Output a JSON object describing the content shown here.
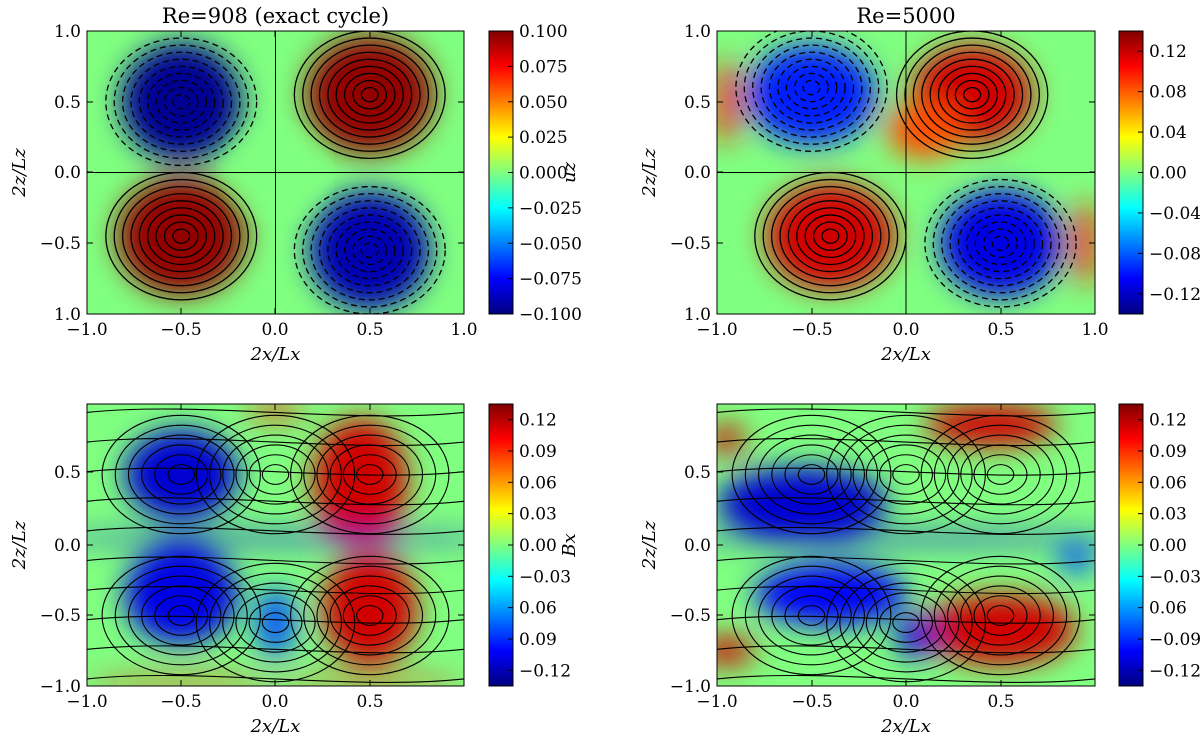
{
  "colormap_colors": [
    "#00007f",
    "#0000ff",
    "#0080ff",
    "#00ffff",
    "#80ff80",
    "#ffff00",
    "#ff8000",
    "#ff0000",
    "#7f0000"
  ],
  "chart_data": [
    {
      "type": "heatmap",
      "panel": "top-left",
      "title": "Re=908 (exact cycle)",
      "xlabel": "2x/Lx",
      "ylabel": "2z/Lz",
      "xlim": [
        -1.0,
        1.0
      ],
      "ylim": [
        -1.0,
        1.0
      ],
      "x_ticks": [
        "−1.0",
        "−0.5",
        "0.0",
        "0.5",
        "1.0"
      ],
      "y_ticks": [
        "1.0",
        "0.5",
        "0.0",
        "−0.5",
        "1.0"
      ],
      "colorbar_label": "uz",
      "colorbar_range": [
        -0.1,
        0.1
      ],
      "colorbar_ticks": [
        "0.100",
        "0.075",
        "0.050",
        "0.025",
        "0.000",
        "−0.025",
        "−0.050",
        "−0.075",
        "−0.100"
      ],
      "overlay": "contours (dashed for negative)",
      "extrema": [
        {
          "x": -0.5,
          "z": 0.5,
          "value": -0.1
        },
        {
          "x": 0.5,
          "z": 0.55,
          "value": 0.1
        },
        {
          "x": -0.5,
          "z": -0.45,
          "value": 0.1
        },
        {
          "x": 0.5,
          "z": -0.55,
          "value": -0.1
        }
      ]
    },
    {
      "type": "heatmap",
      "panel": "top-right",
      "title": "Re=5000",
      "xlabel": "2x/Lx",
      "ylabel": "2z/Lz",
      "xlim": [
        -1.0,
        1.0
      ],
      "ylim": [
        -1.0,
        1.0
      ],
      "x_ticks": [
        "−1.0",
        "−0.5",
        "0.0",
        "0.5",
        "1.0"
      ],
      "y_ticks": [
        "1.0",
        "0.5",
        "0.0",
        "−0.5",
        "1.0"
      ],
      "colorbar_range": [
        -0.15,
        0.15
      ],
      "colorbar_ticks": [
        "0.12",
        "0.08",
        "0.04",
        "0.00",
        "−0.04",
        "−0.08",
        "−0.12"
      ],
      "overlay": "contours (dashed for negative)",
      "extrema": [
        {
          "x": -0.5,
          "z": 0.6,
          "value": -0.12
        },
        {
          "x": 0.35,
          "z": 0.55,
          "value": 0.14
        },
        {
          "x": -0.4,
          "z": -0.45,
          "value": 0.14
        },
        {
          "x": 0.5,
          "z": -0.5,
          "value": -0.12
        }
      ]
    },
    {
      "type": "heatmap",
      "panel": "bottom-left",
      "xlabel": "2x/Lx",
      "ylabel": "2z/Lz",
      "xlim": [
        -1.0,
        1.0
      ],
      "ylim": [
        -1.0,
        1.0
      ],
      "x_ticks": [
        "−1.0",
        "−0.5",
        "0.0",
        "0.5"
      ],
      "y_ticks": [
        "0.5",
        "0.0",
        "−0.5",
        "−1.0"
      ],
      "colorbar_label": "Bx",
      "colorbar_range": [
        -0.15,
        0.15
      ],
      "colorbar_ticks": [
        "0.12",
        "0.09",
        "0.06",
        "0.03",
        "0.00",
        "−0.03",
        "0.06",
        "0.09",
        "−0.12"
      ],
      "overlay": "streamlines"
    },
    {
      "type": "heatmap",
      "panel": "bottom-right",
      "xlabel": "2x/Lx",
      "ylabel": "2z/Lz",
      "xlim": [
        -1.0,
        1.0
      ],
      "ylim": [
        -1.0,
        1.0
      ],
      "x_ticks": [
        "−1.0",
        "−0.5",
        "0.0",
        "0.5"
      ],
      "y_ticks": [
        "0.5",
        "0.0",
        "−0.5",
        "−1.0"
      ],
      "colorbar_range": [
        -0.15,
        0.15
      ],
      "colorbar_ticks": [
        "0.12",
        "0.09",
        "0.06",
        "0.03",
        "0.00",
        "−0.03",
        "0.06",
        "−0.09",
        "−0.12"
      ],
      "overlay": "streamlines"
    }
  ]
}
